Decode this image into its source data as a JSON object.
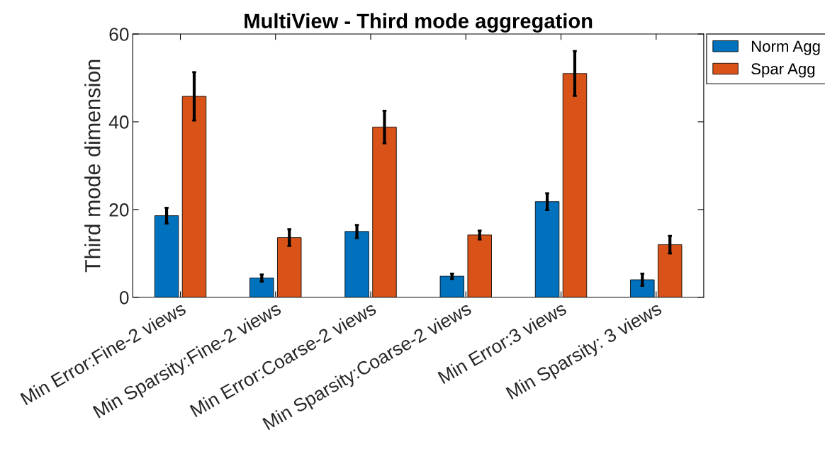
{
  "chart_data": {
    "type": "bar",
    "title": "MultiView - Third mode aggregation",
    "ylabel": "Third mode dimension",
    "categories": [
      "Min Error:Fine-2 views",
      "Min Sparsity:Fine-2 views",
      "Min Error:Coarse-2 views",
      "Min Sparsity:Coarse-2 views",
      "Min Error:3 views",
      "Min Sparsity: 3 views"
    ],
    "series": [
      {
        "name": "Norm Agg",
        "color": "#0072bd",
        "values": [
          18.6,
          4.4,
          15.0,
          4.8,
          21.8,
          4.0
        ],
        "errors": [
          1.8,
          0.8,
          1.5,
          0.6,
          1.9,
          1.4
        ]
      },
      {
        "name": "Spar Agg",
        "color": "#d95319",
        "values": [
          45.8,
          13.6,
          38.8,
          14.2,
          51.0,
          12.0
        ],
        "errors": [
          5.5,
          1.9,
          3.7,
          1.0,
          5.1,
          2.0
        ]
      }
    ],
    "ylim": [
      0,
      60
    ],
    "yticks": [
      0,
      20,
      40,
      60
    ],
    "grid": false,
    "legend": "top right"
  }
}
